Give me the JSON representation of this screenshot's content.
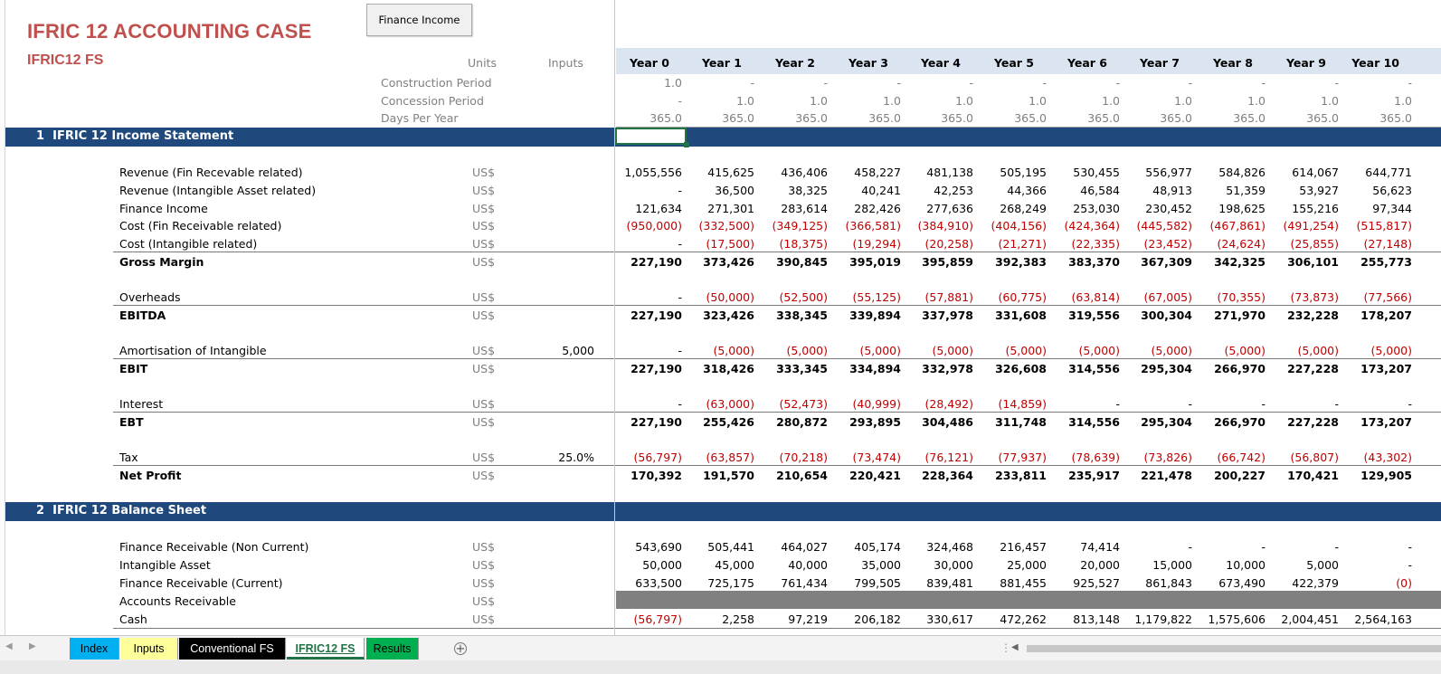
{
  "title": "IFRIC 12 ACCOUNTING CASE",
  "subtitle": "IFRIC12 FS",
  "button_label": "Finance Income",
  "header": {
    "units": "Units",
    "inputs": "Inputs"
  },
  "timing_labels": [
    "Construction Period",
    "Concession Period",
    "Days Per Year"
  ],
  "years": [
    "Year 0",
    "Year 1",
    "Year 2",
    "Year 3",
    "Year 4",
    "Year 5",
    "Year 6",
    "Year 7",
    "Year 8",
    "Year 9",
    "Year 10"
  ],
  "timing": {
    "construction": [
      "1.0",
      "-",
      "-",
      "-",
      "-",
      "-",
      "-",
      "-",
      "-",
      "-",
      "-"
    ],
    "concession": [
      "-",
      "1.0",
      "1.0",
      "1.0",
      "1.0",
      "1.0",
      "1.0",
      "1.0",
      "1.0",
      "1.0",
      "1.0"
    ],
    "days": [
      "365.0",
      "365.0",
      "365.0",
      "365.0",
      "365.0",
      "365.0",
      "365.0",
      "365.0",
      "365.0",
      "365.0",
      "365.0"
    ]
  },
  "sections": [
    {
      "num": "1",
      "title": "IFRIC 12 Income Statement"
    },
    {
      "num": "2",
      "title": "IFRIC 12 Balance Sheet"
    }
  ],
  "rows": [
    {
      "label": "Revenue (Fin Recevable related)",
      "unit": "US$",
      "input": "",
      "bold": false,
      "total": false,
      "values": [
        "1,055,556",
        "415,625",
        "436,406",
        "458,227",
        "481,138",
        "505,195",
        "530,455",
        "556,977",
        "584,826",
        "614,067",
        "644,771"
      ]
    },
    {
      "label": "Revenue (Intangible Asset related)",
      "unit": "US$",
      "input": "",
      "bold": false,
      "total": false,
      "values": [
        "-",
        "36,500",
        "38,325",
        "40,241",
        "42,253",
        "44,366",
        "46,584",
        "48,913",
        "51,359",
        "53,927",
        "56,623"
      ]
    },
    {
      "label": "Finance Income",
      "unit": "US$",
      "input": "",
      "bold": false,
      "total": false,
      "values": [
        "121,634",
        "271,301",
        "283,614",
        "282,426",
        "277,636",
        "268,249",
        "253,030",
        "230,452",
        "198,625",
        "155,216",
        "97,344"
      ]
    },
    {
      "label": "Cost (Fin Receivable related)",
      "unit": "US$",
      "input": "",
      "bold": false,
      "total": false,
      "values": [
        "(950,000)",
        "(332,500)",
        "(349,125)",
        "(366,581)",
        "(384,910)",
        "(404,156)",
        "(424,364)",
        "(445,582)",
        "(467,861)",
        "(491,254)",
        "(515,817)"
      ]
    },
    {
      "label": "Cost (Intangible related)",
      "unit": "US$",
      "input": "",
      "bold": false,
      "total": false,
      "values": [
        "-",
        "(17,500)",
        "(18,375)",
        "(19,294)",
        "(20,258)",
        "(21,271)",
        "(22,335)",
        "(23,452)",
        "(24,624)",
        "(25,855)",
        "(27,148)"
      ]
    },
    {
      "label": "Gross Margin",
      "unit": "US$",
      "input": "",
      "bold": true,
      "total": true,
      "values": [
        "227,190",
        "373,426",
        "390,845",
        "395,019",
        "395,859",
        "392,383",
        "383,370",
        "367,309",
        "342,325",
        "306,101",
        "255,773"
      ]
    },
    {
      "label": "Overheads",
      "unit": "US$",
      "input": "",
      "bold": false,
      "total": false,
      "values": [
        "-",
        "(50,000)",
        "(52,500)",
        "(55,125)",
        "(57,881)",
        "(60,775)",
        "(63,814)",
        "(67,005)",
        "(70,355)",
        "(73,873)",
        "(77,566)"
      ]
    },
    {
      "label": "EBITDA",
      "unit": "US$",
      "input": "",
      "bold": true,
      "total": true,
      "values": [
        "227,190",
        "323,426",
        "338,345",
        "339,894",
        "337,978",
        "331,608",
        "319,556",
        "300,304",
        "271,970",
        "232,228",
        "178,207"
      ]
    },
    {
      "label": "Amortisation of Intangible",
      "unit": "US$",
      "input": "5,000",
      "bold": false,
      "total": false,
      "values": [
        "-",
        "(5,000)",
        "(5,000)",
        "(5,000)",
        "(5,000)",
        "(5,000)",
        "(5,000)",
        "(5,000)",
        "(5,000)",
        "(5,000)",
        "(5,000)"
      ]
    },
    {
      "label": "EBIT",
      "unit": "US$",
      "input": "",
      "bold": true,
      "total": true,
      "values": [
        "227,190",
        "318,426",
        "333,345",
        "334,894",
        "332,978",
        "326,608",
        "314,556",
        "295,304",
        "266,970",
        "227,228",
        "173,207"
      ]
    },
    {
      "label": "Interest",
      "unit": "US$",
      "input": "",
      "bold": false,
      "total": false,
      "values": [
        "-",
        "(63,000)",
        "(52,473)",
        "(40,999)",
        "(28,492)",
        "(14,859)",
        "-",
        "-",
        "-",
        "-",
        "-"
      ]
    },
    {
      "label": "EBT",
      "unit": "US$",
      "input": "",
      "bold": true,
      "total": true,
      "values": [
        "227,190",
        "255,426",
        "280,872",
        "293,895",
        "304,486",
        "311,748",
        "314,556",
        "295,304",
        "266,970",
        "227,228",
        "173,207"
      ]
    },
    {
      "label": "Tax",
      "unit": "US$",
      "input": "25.0%",
      "bold": false,
      "total": false,
      "values": [
        "(56,797)",
        "(63,857)",
        "(70,218)",
        "(73,474)",
        "(76,121)",
        "(77,937)",
        "(78,639)",
        "(73,826)",
        "(66,742)",
        "(56,807)",
        "(43,302)"
      ]
    },
    {
      "label": "Net Profit",
      "unit": "US$",
      "input": "",
      "bold": true,
      "total": true,
      "values": [
        "170,392",
        "191,570",
        "210,654",
        "220,421",
        "228,364",
        "233,811",
        "235,917",
        "221,478",
        "200,227",
        "170,421",
        "129,905"
      ]
    },
    {
      "label": "Finance Receivable (Non Current)",
      "unit": "US$",
      "input": "",
      "bold": false,
      "total": false,
      "values": [
        "543,690",
        "505,441",
        "464,027",
        "405,174",
        "324,468",
        "216,457",
        "74,414",
        "-",
        "-",
        "-",
        "-"
      ]
    },
    {
      "label": "Intangible Asset",
      "unit": "US$",
      "input": "",
      "bold": false,
      "total": false,
      "values": [
        "50,000",
        "45,000",
        "40,000",
        "35,000",
        "30,000",
        "25,000",
        "20,000",
        "15,000",
        "10,000",
        "5,000",
        "-"
      ]
    },
    {
      "label": "Finance Receivable (Current)",
      "unit": "US$",
      "input": "",
      "bold": false,
      "total": false,
      "values": [
        "633,500",
        "725,175",
        "761,434",
        "799,505",
        "839,481",
        "881,455",
        "925,527",
        "861,843",
        "673,490",
        "422,379",
        "(0)"
      ]
    },
    {
      "label": "Accounts Receivable",
      "unit": "US$",
      "input": "",
      "bold": false,
      "total": false,
      "values": [
        "",
        "",
        "",
        "",
        "",
        "",
        "",
        "",
        "",
        "",
        ""
      ]
    },
    {
      "label": "Cash",
      "unit": "US$",
      "input": "",
      "bold": false,
      "total": false,
      "values": [
        "(56,797)",
        "2,258",
        "97,219",
        "206,182",
        "330,617",
        "472,262",
        "813,148",
        "1,179,822",
        "1,575,606",
        "2,004,451",
        "2,564,163"
      ]
    }
  ],
  "tabs": [
    {
      "label": "Index",
      "color": "#00b0f0",
      "text": "#000000"
    },
    {
      "label": "Inputs",
      "color": "#ffff99",
      "text": "#000000"
    },
    {
      "label": "Conventional FS",
      "color": "#000000",
      "text": "#ffffff"
    },
    {
      "label": "IFRIC12 FS",
      "color": "#ffffff",
      "text": "#217346",
      "active": true
    },
    {
      "label": "Results",
      "color": "#00b050",
      "text": "#000000"
    }
  ],
  "colors": {
    "title": "#c0504d",
    "section": "#1f497d",
    "negative": "#c00000",
    "year_band": "#dbe5f1"
  }
}
